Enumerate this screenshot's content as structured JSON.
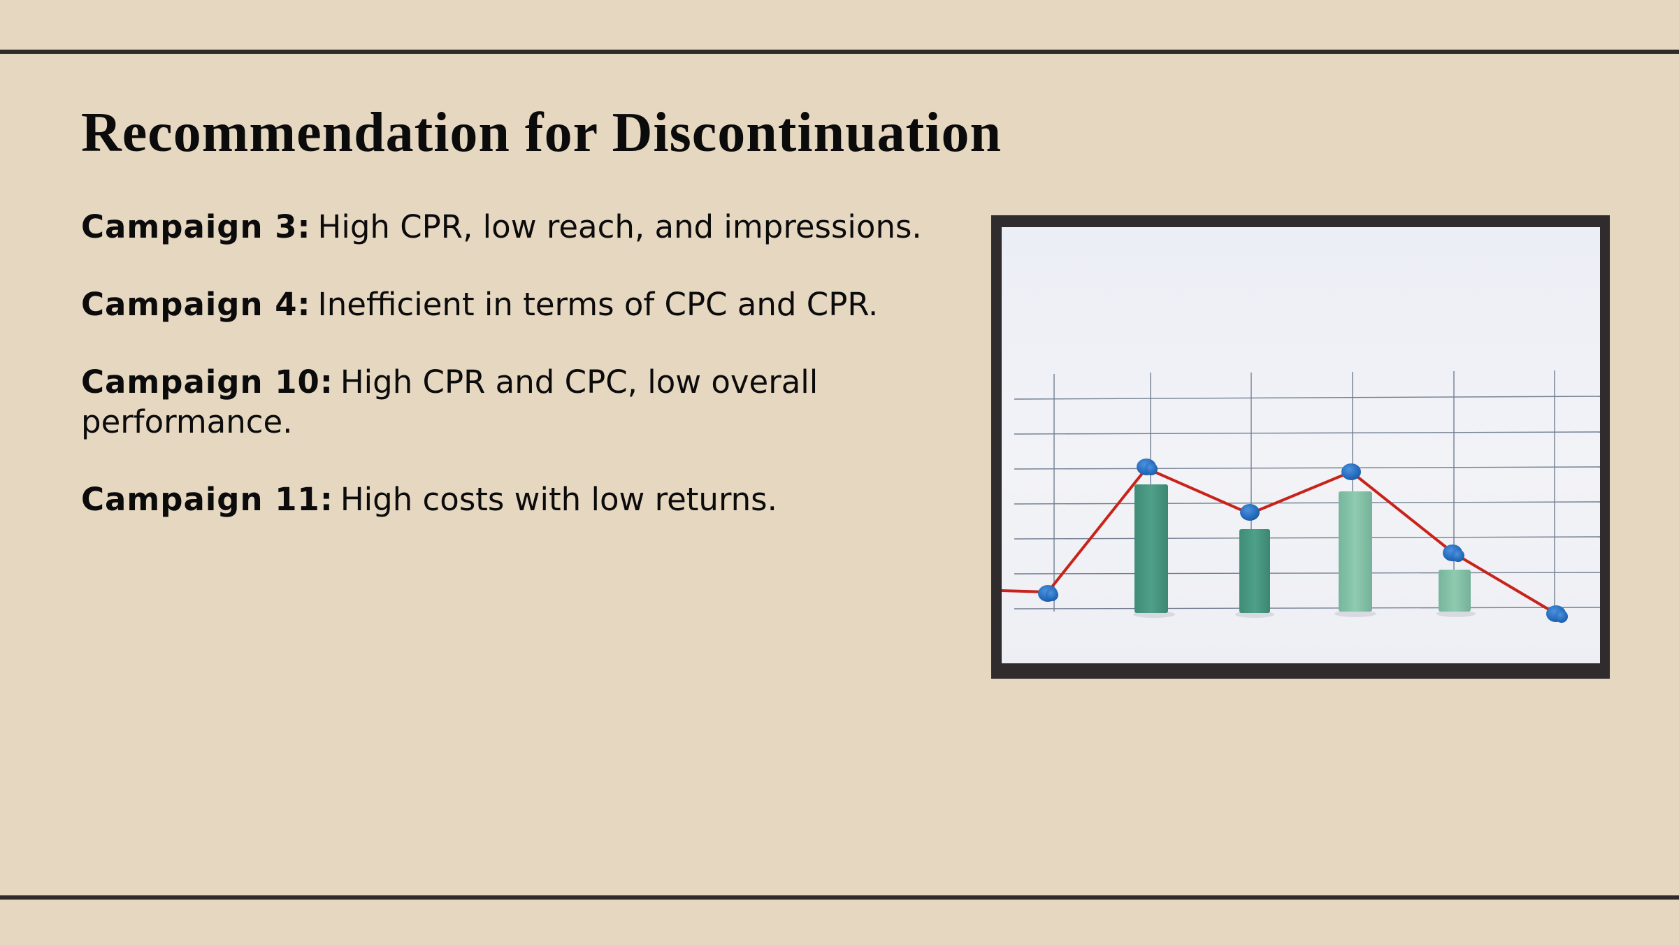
{
  "slide": {
    "title": "Recommendation for Discontinuation",
    "bullets": [
      {
        "label": "Campaign 3:",
        "text": "High CPR, low reach, and impressions."
      },
      {
        "label": "Campaign 4:",
        "text": "Inefficient in terms of CPC and CPR."
      },
      {
        "label": "Campaign 10:",
        "text": "High CPR and CPC, low overall performance."
      },
      {
        "label": "Campaign 11:",
        "text": "High costs with low returns."
      }
    ]
  },
  "photo": {
    "icon": "bar-line-chart-photo",
    "colors": {
      "frame": "#302b2c",
      "bar_dark": "#4a9a84",
      "bar_light": "#86c3a9",
      "string": "#c8231a",
      "pin": "#1f67b8",
      "grid": "#5d6b80"
    }
  }
}
